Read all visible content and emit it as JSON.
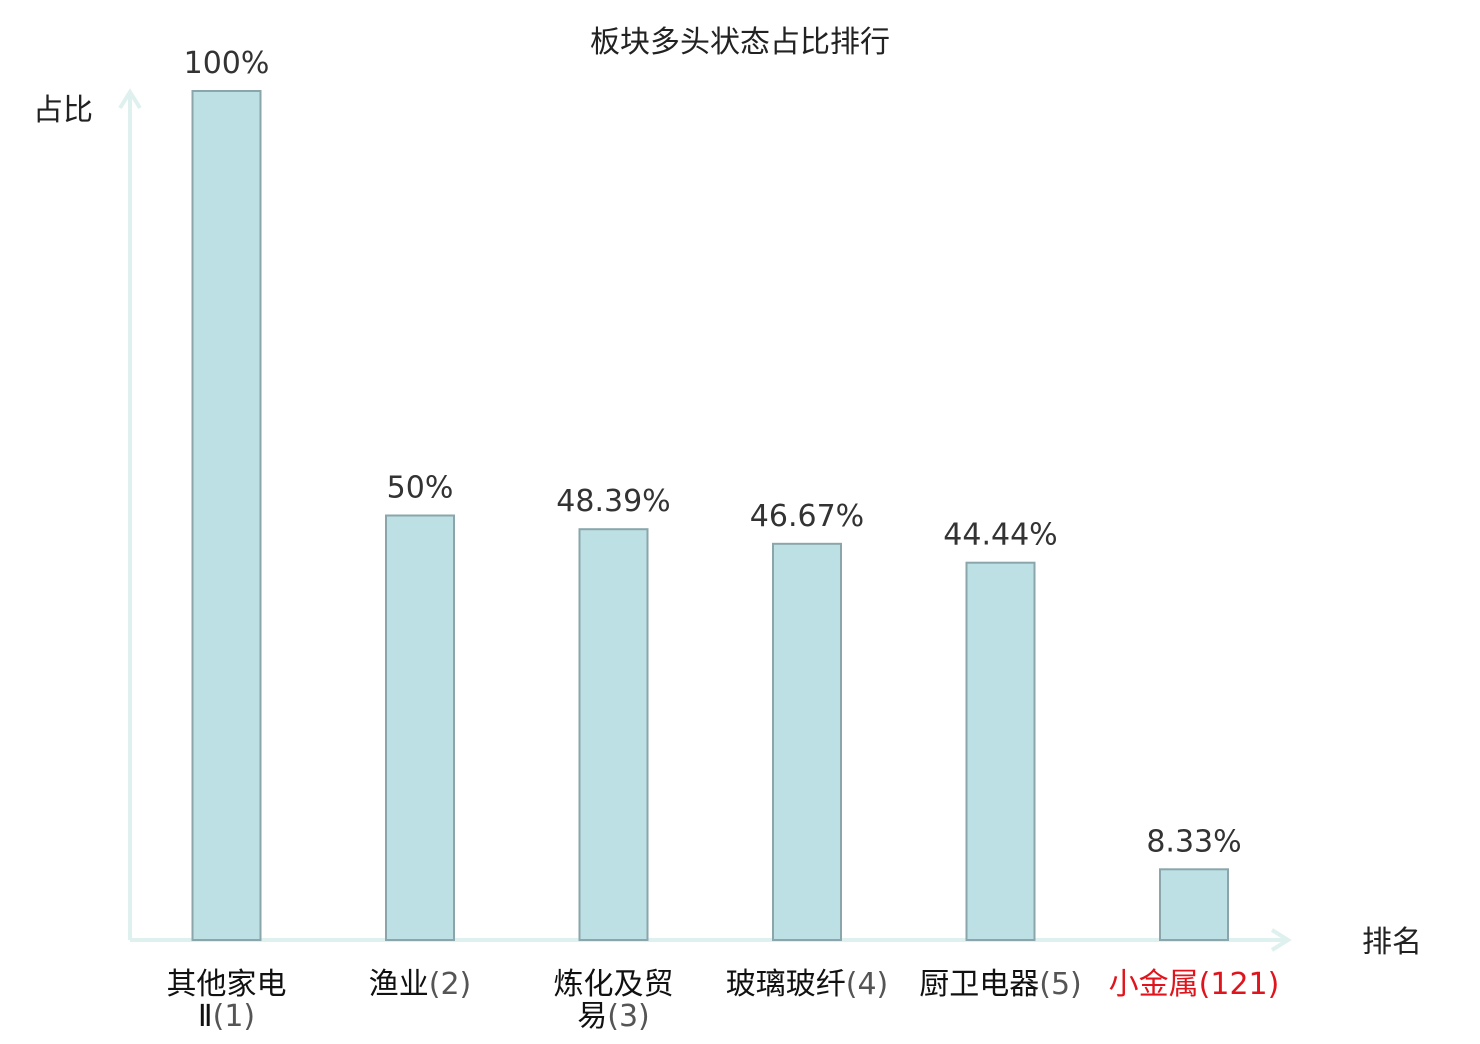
{
  "chart_data": {
    "type": "bar",
    "title": "板块多头状态占比排行",
    "ylabel": "占比",
    "xlabel": "排名",
    "ylim": [
      0,
      100
    ],
    "grid": false,
    "categories": [
      {
        "name": "其他家电Ⅱ",
        "rank": "(1)",
        "highlight": false
      },
      {
        "name": "渔业",
        "rank": "(2)",
        "highlight": false
      },
      {
        "name": "炼化及贸易",
        "rank": "(3)",
        "highlight": false
      },
      {
        "name": "玻璃玻纤",
        "rank": "(4)",
        "highlight": false
      },
      {
        "name": "厨卫电器",
        "rank": "(5)",
        "highlight": false
      },
      {
        "name": "小金属",
        "rank": "(121)",
        "highlight": true
      }
    ],
    "values": [
      100,
      50,
      48.39,
      46.67,
      44.44,
      8.33
    ],
    "value_labels": [
      "100%",
      "50%",
      "48.39%",
      "46.67%",
      "44.44%",
      "8.33%"
    ],
    "colors": {
      "bar_fill": "#bce0e3",
      "bar_stroke": "#8aa6ab",
      "axis": "#dff1ef",
      "text": "#333333",
      "highlight": "#e0141c"
    }
  }
}
